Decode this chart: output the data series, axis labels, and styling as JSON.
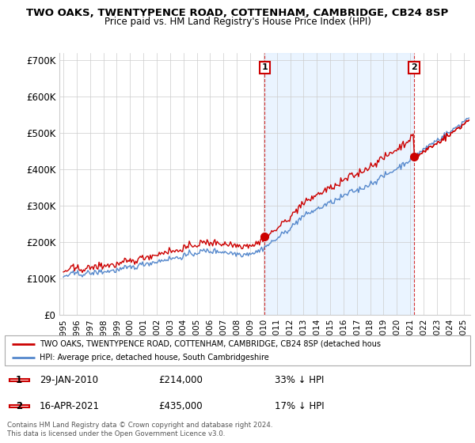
{
  "title": "TWO OAKS, TWENTYPENCE ROAD, COTTENHAM, CAMBRIDGE, CB24 8SP",
  "subtitle": "Price paid vs. HM Land Registry's House Price Index (HPI)",
  "ylabel_ticks": [
    "£0",
    "£100K",
    "£200K",
    "£300K",
    "£400K",
    "£500K",
    "£600K",
    "£700K"
  ],
  "ytick_values": [
    0,
    100000,
    200000,
    300000,
    400000,
    500000,
    600000,
    700000
  ],
  "ylim": [
    0,
    720000
  ],
  "xlim_start": 1994.7,
  "xlim_end": 2025.5,
  "hpi_color": "#5588cc",
  "hpi_fill_color": "#ddeeff",
  "price_color": "#cc0000",
  "marker1_date": 2010.08,
  "marker1_price": 214000,
  "marker1_label": "1",
  "marker2_date": 2021.29,
  "marker2_price": 435000,
  "marker2_label": "2",
  "legend_line1": "TWO OAKS, TWENTYPENCE ROAD, COTTENHAM, CAMBRIDGE, CB24 8SP (detached hous",
  "legend_line2": "HPI: Average price, detached house, South Cambridgeshire",
  "table_row1_num": "1",
  "table_row1_date": "29-JAN-2010",
  "table_row1_price": "£214,000",
  "table_row1_note": "33% ↓ HPI",
  "table_row2_num": "2",
  "table_row2_date": "16-APR-2021",
  "table_row2_price": "£435,000",
  "table_row2_note": "17% ↓ HPI",
  "footnote": "Contains HM Land Registry data © Crown copyright and database right 2024.\nThis data is licensed under the Open Government Licence v3.0.",
  "background_color": "#ffffff",
  "grid_color": "#cccccc"
}
